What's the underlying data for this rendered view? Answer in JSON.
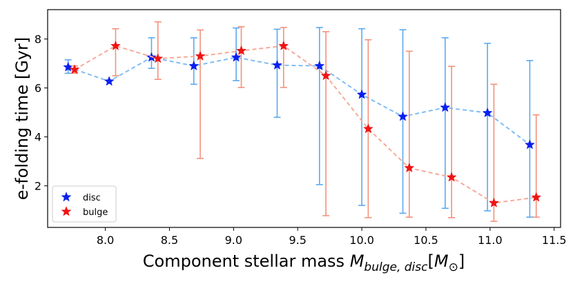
{
  "chart_data": {
    "type": "line",
    "xlabel_prefix": "Component stellar mass ",
    "xlabel_math": "M",
    "xlabel_sub": "bulge, disc",
    "xlabel_bracket_open": "[",
    "xlabel_unit": "M",
    "xlabel_unit_sub": "⊙",
    "xlabel_bracket_close": "]",
    "ylabel": "e-folding time [Gyr]",
    "xlim": [
      7.55,
      11.55
    ],
    "ylim": [
      0.3,
      9.2
    ],
    "xticks": [
      "8.0",
      "8.5",
      "9.0",
      "9.5",
      "10.0",
      "10.5",
      "11.0",
      "11.5"
    ],
    "yticks": [
      "2",
      "4",
      "6",
      "8"
    ],
    "legend_position": "lower-left",
    "series": [
      {
        "name": "disc",
        "marker_color": "#0a1ff0",
        "line_color": "#7fbdf5",
        "errorbar_color": "#5aa9ee",
        "points": [
          {
            "x": 7.71,
            "y": 6.85,
            "lo": 6.6,
            "hi": 7.15
          },
          {
            "x": 8.03,
            "y": 6.27,
            "lo": 6.27,
            "hi": 6.27
          },
          {
            "x": 8.36,
            "y": 7.25,
            "lo": 6.8,
            "hi": 8.05
          },
          {
            "x": 8.69,
            "y": 6.9,
            "lo": 6.15,
            "hi": 8.05
          },
          {
            "x": 9.02,
            "y": 7.25,
            "lo": 6.3,
            "hi": 8.45
          },
          {
            "x": 9.34,
            "y": 6.93,
            "lo": 4.8,
            "hi": 8.4
          },
          {
            "x": 9.67,
            "y": 6.9,
            "lo": 2.05,
            "hi": 8.47
          },
          {
            "x": 10.0,
            "y": 5.73,
            "lo": 1.2,
            "hi": 8.42
          },
          {
            "x": 10.32,
            "y": 4.83,
            "lo": 0.88,
            "hi": 8.38
          },
          {
            "x": 10.65,
            "y": 5.2,
            "lo": 1.08,
            "hi": 8.05
          },
          {
            "x": 10.98,
            "y": 4.98,
            "lo": 0.98,
            "hi": 7.82
          },
          {
            "x": 11.31,
            "y": 3.68,
            "lo": 0.72,
            "hi": 7.12
          }
        ]
      },
      {
        "name": "bulge",
        "marker_color": "#f01414",
        "line_color": "#f7aa98",
        "errorbar_color": "#f4907a",
        "points": [
          {
            "x": 7.76,
            "y": 6.75,
            "lo": 6.6,
            "hi": 6.9
          },
          {
            "x": 8.08,
            "y": 7.72,
            "lo": 6.5,
            "hi": 8.42
          },
          {
            "x": 8.41,
            "y": 7.2,
            "lo": 6.35,
            "hi": 8.7
          },
          {
            "x": 8.74,
            "y": 7.3,
            "lo": 3.12,
            "hi": 8.37
          },
          {
            "x": 9.06,
            "y": 7.52,
            "lo": 6.02,
            "hi": 8.5
          },
          {
            "x": 9.39,
            "y": 7.72,
            "lo": 6.02,
            "hi": 8.47
          },
          {
            "x": 9.72,
            "y": 6.5,
            "lo": 0.78,
            "hi": 8.3
          },
          {
            "x": 10.05,
            "y": 4.33,
            "lo": 0.7,
            "hi": 7.97
          },
          {
            "x": 10.37,
            "y": 2.73,
            "lo": 0.72,
            "hi": 7.5
          },
          {
            "x": 10.7,
            "y": 2.35,
            "lo": 0.7,
            "hi": 6.88
          },
          {
            "x": 11.03,
            "y": 1.3,
            "lo": 0.55,
            "hi": 6.15
          },
          {
            "x": 11.36,
            "y": 1.53,
            "lo": 0.72,
            "hi": 4.9
          }
        ]
      }
    ]
  }
}
